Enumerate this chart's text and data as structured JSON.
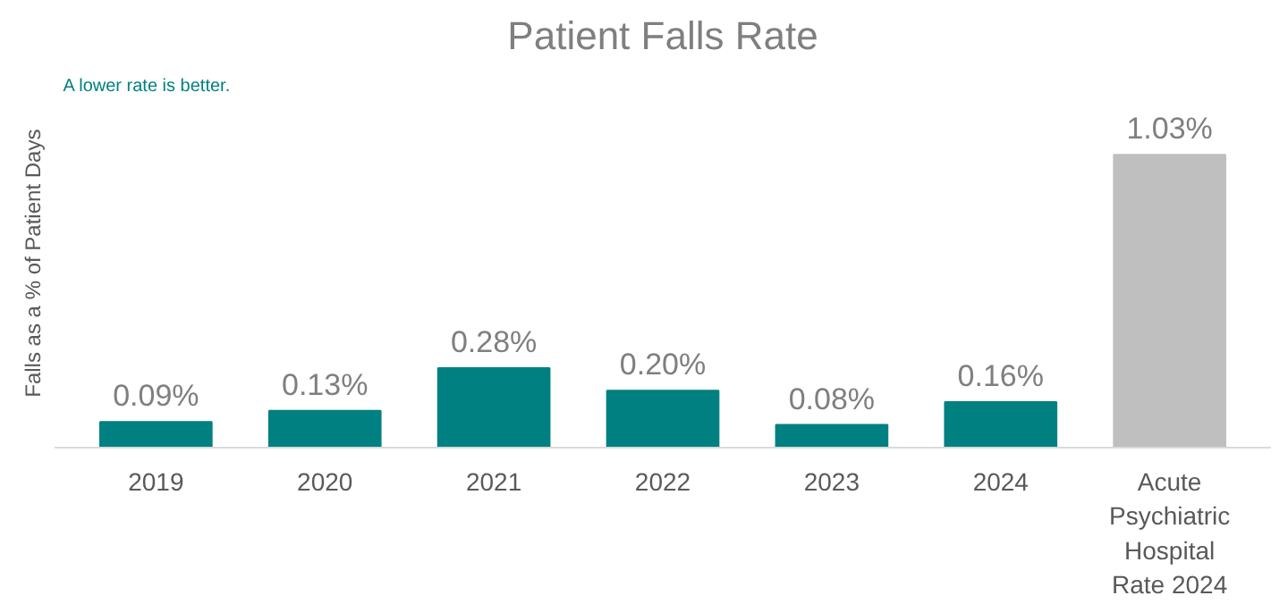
{
  "chart_data": {
    "type": "bar",
    "title": "Patient Falls Rate",
    "ylabel": "Falls  as  a % of Patient Days",
    "annotations": [
      "A lower rate is better."
    ],
    "categories": [
      "2019",
      "2020",
      "2021",
      "2022",
      "2023",
      "2024",
      "Acute Psychiatric Hospital Rate 2024"
    ],
    "values": [
      0.09,
      0.13,
      0.28,
      0.2,
      0.08,
      0.16,
      1.03
    ],
    "colors": [
      "#008080",
      "#008080",
      "#008080",
      "#008080",
      "#008080",
      "#008080",
      "#bfbfbf"
    ],
    "value_labels": [
      "0.09%",
      "0.13%",
      "0.28%",
      "0.20%",
      "0.08%",
      "0.16%",
      "1.03%"
    ],
    "grid": false
  }
}
